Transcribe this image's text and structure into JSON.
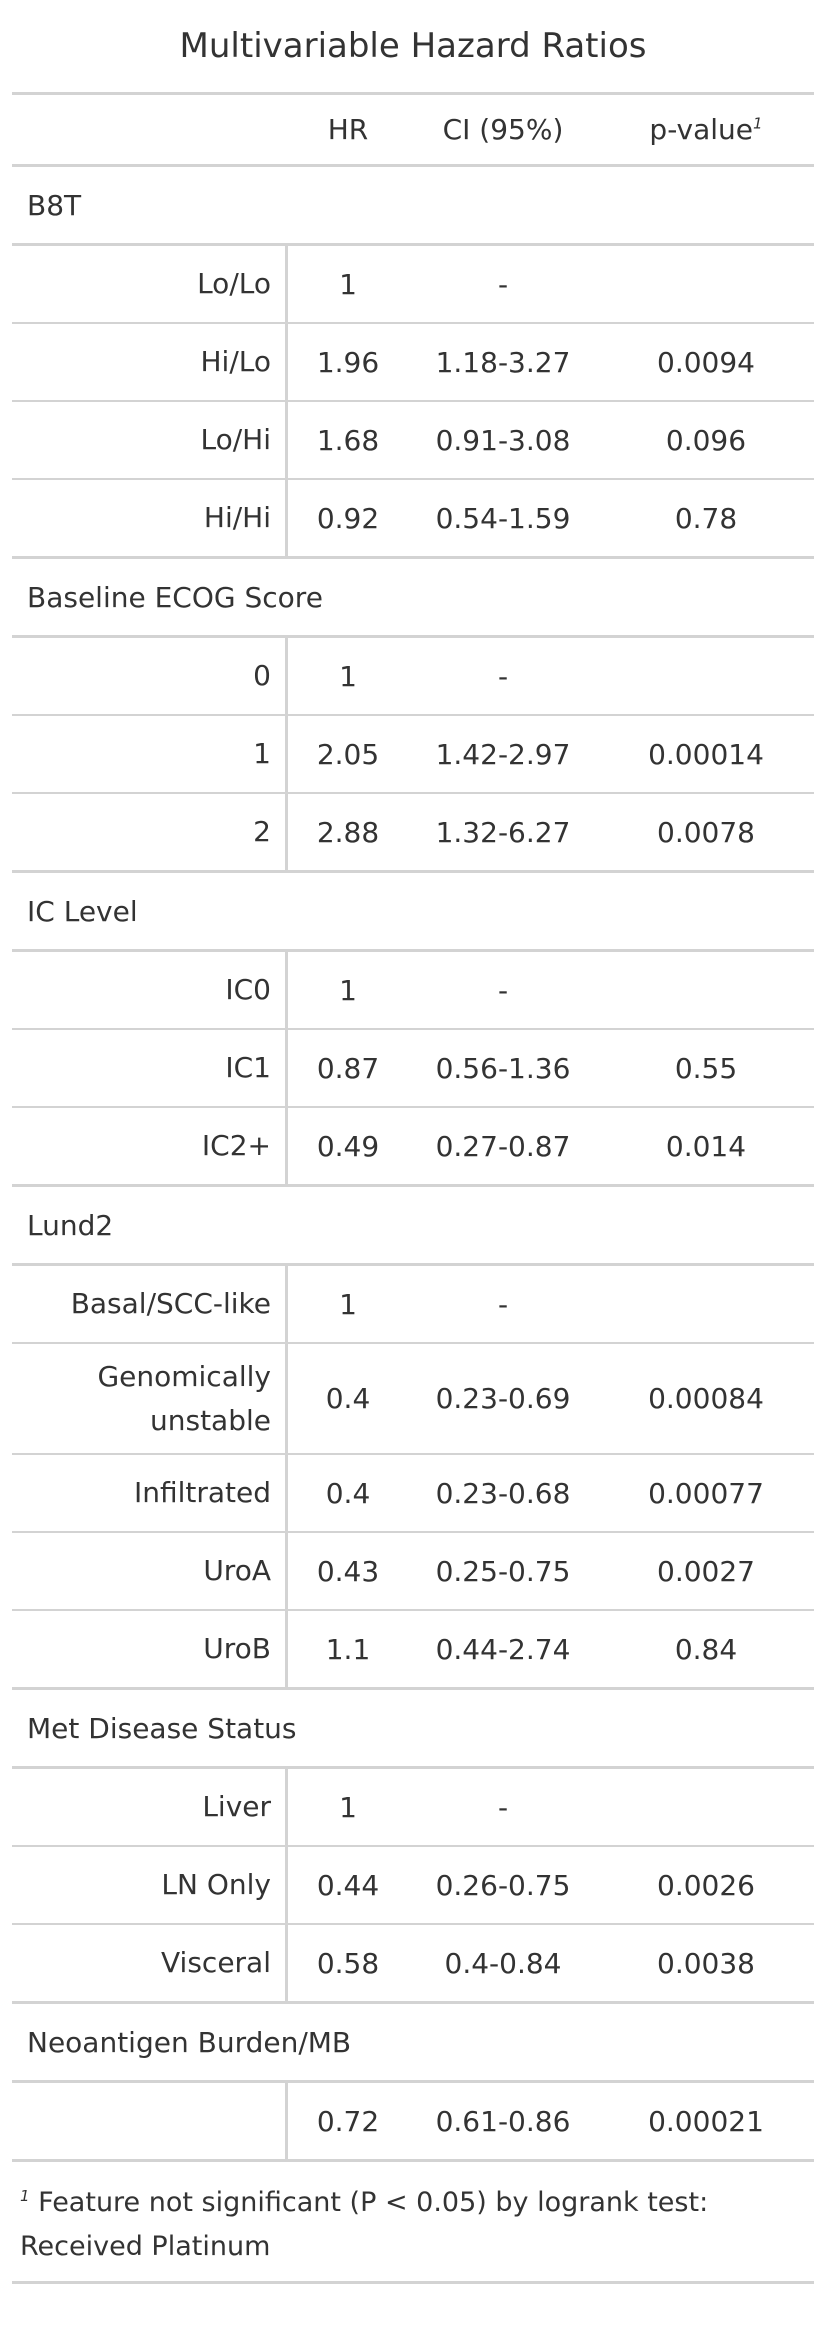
{
  "table": {
    "title": "Multivariable Hazard Ratios",
    "columns": {
      "label": "",
      "hr": "HR",
      "ci": "CI (95%)",
      "p": "p-value",
      "p_footnote_mark": "1"
    },
    "groups": [
      {
        "name": "B8T",
        "rows": [
          {
            "label": "Lo/Lo",
            "hr": "1",
            "ci": "-",
            "p": ""
          },
          {
            "label": "Hi/Lo",
            "hr": "1.96",
            "ci": "1.18-3.27",
            "p": "0.0094"
          },
          {
            "label": "Lo/Hi",
            "hr": "1.68",
            "ci": "0.91-3.08",
            "p": "0.096"
          },
          {
            "label": "Hi/Hi",
            "hr": "0.92",
            "ci": "0.54-1.59",
            "p": "0.78"
          }
        ]
      },
      {
        "name": "Baseline ECOG Score",
        "rows": [
          {
            "label": "0",
            "hr": "1",
            "ci": "-",
            "p": ""
          },
          {
            "label": "1",
            "hr": "2.05",
            "ci": "1.42-2.97",
            "p": "0.00014"
          },
          {
            "label": "2",
            "hr": "2.88",
            "ci": "1.32-6.27",
            "p": "0.0078"
          }
        ]
      },
      {
        "name": "IC Level",
        "rows": [
          {
            "label": "IC0",
            "hr": "1",
            "ci": "-",
            "p": ""
          },
          {
            "label": "IC1",
            "hr": "0.87",
            "ci": "0.56-1.36",
            "p": "0.55"
          },
          {
            "label": "IC2+",
            "hr": "0.49",
            "ci": "0.27-0.87",
            "p": "0.014"
          }
        ]
      },
      {
        "name": "Lund2",
        "rows": [
          {
            "label": "Basal/SCC-like",
            "hr": "1",
            "ci": "-",
            "p": ""
          },
          {
            "label": "Genomically unstable",
            "hr": "0.4",
            "ci": "0.23-0.69",
            "p": "0.00084"
          },
          {
            "label": "Infiltrated",
            "hr": "0.4",
            "ci": "0.23-0.68",
            "p": "0.00077"
          },
          {
            "label": "UroA",
            "hr": "0.43",
            "ci": "0.25-0.75",
            "p": "0.0027"
          },
          {
            "label": "UroB",
            "hr": "1.1",
            "ci": "0.44-2.74",
            "p": "0.84"
          }
        ]
      },
      {
        "name": "Met Disease Status",
        "rows": [
          {
            "label": "Liver",
            "hr": "1",
            "ci": "-",
            "p": ""
          },
          {
            "label": "LN Only",
            "hr": "0.44",
            "ci": "0.26-0.75",
            "p": "0.0026"
          },
          {
            "label": "Visceral",
            "hr": "0.58",
            "ci": "0.4-0.84",
            "p": "0.0038"
          }
        ]
      },
      {
        "name": "Neoantigen Burden/MB",
        "rows": [
          {
            "label": "",
            "hr": "0.72",
            "ci": "0.61-0.86",
            "p": "0.00021"
          }
        ]
      }
    ],
    "footnote": {
      "mark": "1",
      "text": "Feature not significant (P < 0.05) by logrank test: Received Platinum"
    }
  }
}
